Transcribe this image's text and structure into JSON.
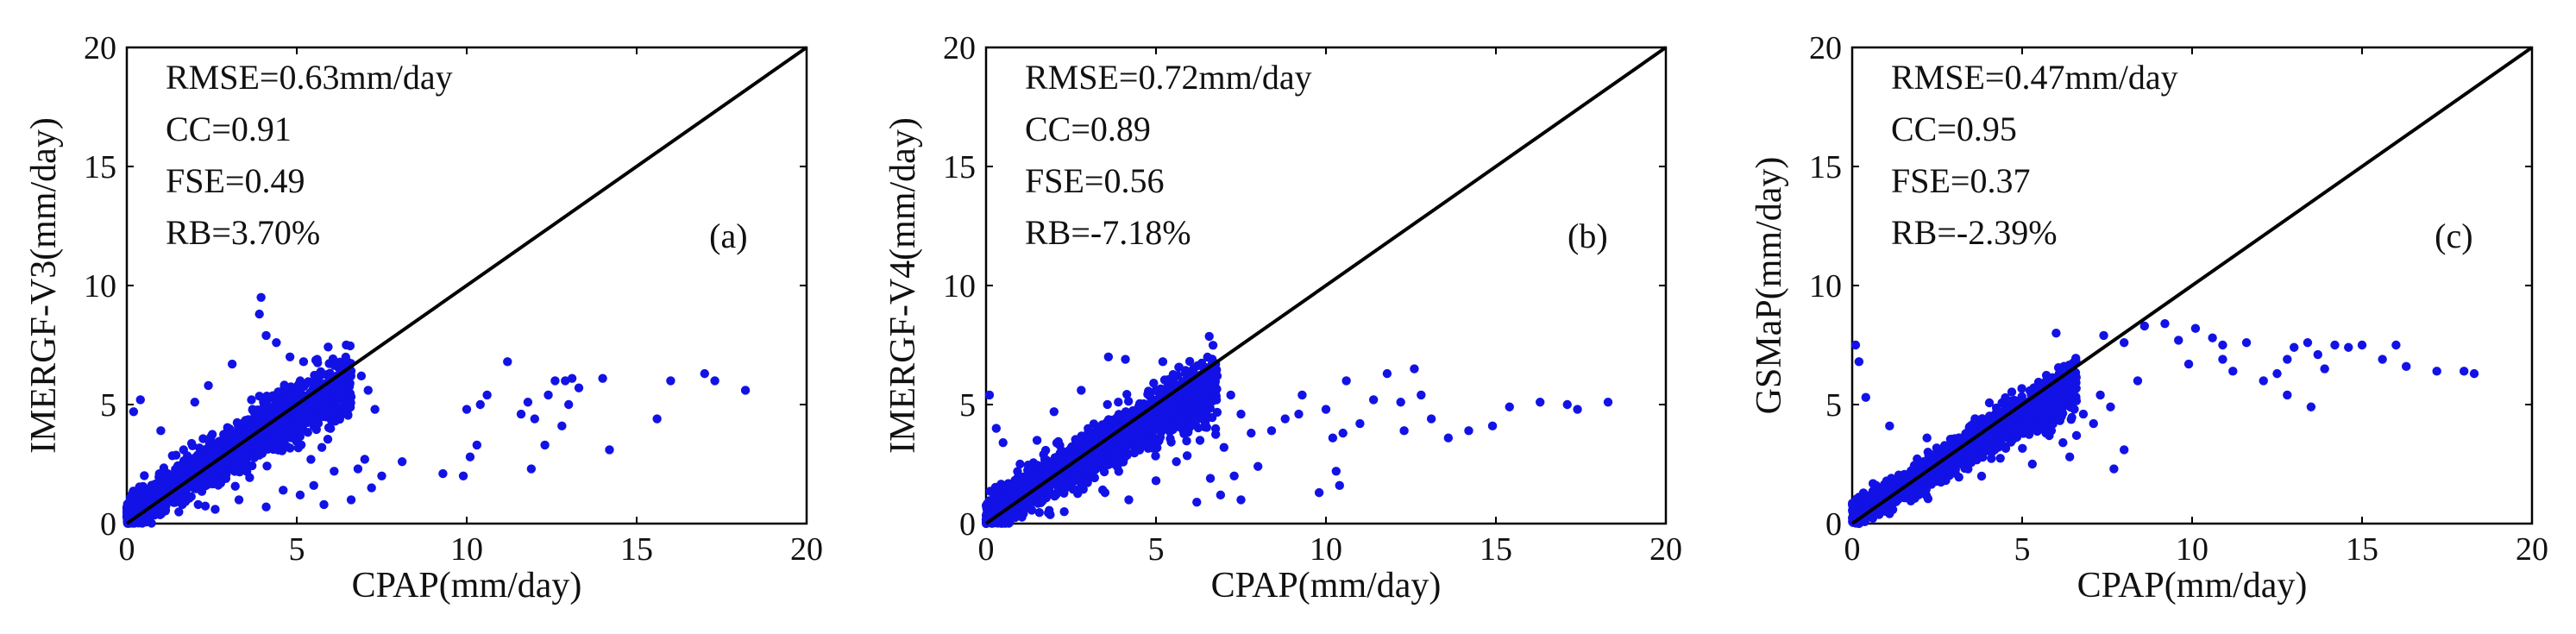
{
  "chart_data": [
    {
      "panel_label": "(a)",
      "type": "scatter",
      "xlabel": "CPAP(mm/day)",
      "ylabel": "IMERGF-V3(mm/day)",
      "xlim": [
        0,
        20
      ],
      "ylim": [
        0,
        20
      ],
      "xticks": [
        "0",
        "5",
        "10",
        "15",
        "20"
      ],
      "yticks": [
        "0",
        "5",
        "10",
        "15",
        "20"
      ],
      "stats": [
        "RMSE=0.63mm/day",
        "CC=0.91",
        "FSE=0.49",
        "RB=3.70%"
      ],
      "reference_line": {
        "name": "1:1 line",
        "from": [
          0,
          0
        ],
        "to": [
          20,
          20
        ]
      },
      "dense_cluster": {
        "x_range": [
          0,
          6.6
        ],
        "slope": 0.87,
        "spread": 0.75
      },
      "points": [
        [
          3.95,
          9.5
        ],
        [
          3.9,
          8.8
        ],
        [
          4.4,
          7.6
        ],
        [
          4.1,
          7.9
        ],
        [
          5.2,
          6.8
        ],
        [
          6.4,
          6.6
        ],
        [
          6.9,
          6.2
        ],
        [
          7.1,
          5.6
        ],
        [
          7.3,
          4.8
        ],
        [
          6.5,
          4.6
        ],
        [
          7.0,
          2.7
        ],
        [
          6.8,
          2.3
        ],
        [
          7.2,
          1.5
        ],
        [
          6.6,
          1.0
        ],
        [
          5.8,
          0.8
        ],
        [
          6.1,
          2.2
        ],
        [
          5.5,
          1.6
        ],
        [
          7.5,
          2.0
        ],
        [
          8.1,
          2.6
        ],
        [
          9.3,
          2.1
        ],
        [
          9.9,
          2.0
        ],
        [
          10.1,
          2.8
        ],
        [
          10.3,
          3.3
        ],
        [
          10.0,
          4.8
        ],
        [
          10.4,
          5.0
        ],
        [
          10.6,
          5.4
        ],
        [
          11.2,
          6.8
        ],
        [
          11.6,
          4.6
        ],
        [
          11.8,
          5.1
        ],
        [
          12.0,
          4.4
        ],
        [
          12.4,
          5.4
        ],
        [
          12.6,
          6.0
        ],
        [
          12.9,
          6.0
        ],
        [
          13.1,
          6.1
        ],
        [
          13.3,
          5.7
        ],
        [
          13.0,
          5.0
        ],
        [
          12.8,
          4.1
        ],
        [
          12.3,
          3.3
        ],
        [
          11.9,
          2.3
        ],
        [
          14.2,
          3.1
        ],
        [
          14.0,
          6.1
        ],
        [
          15.6,
          4.4
        ],
        [
          16.0,
          6.0
        ],
        [
          17.0,
          6.3
        ],
        [
          17.3,
          6.0
        ],
        [
          18.2,
          5.6
        ],
        [
          2.1,
          0.8
        ],
        [
          2.6,
          0.6
        ],
        [
          3.3,
          1.0
        ],
        [
          4.6,
          1.4
        ],
        [
          5.1,
          1.2
        ],
        [
          4.1,
          0.7
        ],
        [
          0.2,
          4.7
        ],
        [
          0.4,
          5.2
        ],
        [
          1.0,
          3.9
        ],
        [
          2.4,
          5.8
        ],
        [
          3.1,
          6.7
        ],
        [
          2.0,
          5.1
        ],
        [
          4.8,
          7.0
        ],
        [
          5.6,
          6.9
        ]
      ]
    },
    {
      "panel_label": "(b)",
      "type": "scatter",
      "xlabel": "CPAP(mm/day)",
      "ylabel": "IMERGF-V4(mm/day)",
      "xlim": [
        0,
        20
      ],
      "ylim": [
        0,
        20
      ],
      "xticks": [
        "0",
        "5",
        "10",
        "15",
        "20"
      ],
      "yticks": [
        "0",
        "5",
        "10",
        "15",
        "20"
      ],
      "stats": [
        "RMSE=0.72mm/day",
        "CC=0.89",
        "FSE=0.56",
        "RB=-7.18%"
      ],
      "reference_line": {
        "name": "1:1 line",
        "from": [
          0,
          0
        ],
        "to": [
          20,
          20
        ]
      },
      "dense_cluster": {
        "x_range": [
          0,
          6.8
        ],
        "slope": 0.82,
        "spread": 0.8
      },
      "points": [
        [
          3.6,
          7.0
        ],
        [
          4.1,
          6.9
        ],
        [
          5.2,
          6.8
        ],
        [
          6.1,
          6.5
        ],
        [
          6.8,
          6.2
        ],
        [
          7.2,
          5.4
        ],
        [
          7.5,
          4.6
        ],
        [
          7.8,
          3.8
        ],
        [
          7.0,
          3.2
        ],
        [
          7.3,
          2.0
        ],
        [
          6.6,
          1.9
        ],
        [
          6.9,
          1.2
        ],
        [
          6.2,
          0.9
        ],
        [
          7.5,
          1.0
        ],
        [
          8.0,
          2.4
        ],
        [
          8.4,
          3.9
        ],
        [
          8.8,
          4.4
        ],
        [
          9.3,
          5.4
        ],
        [
          9.2,
          4.6
        ],
        [
          10.0,
          4.8
        ],
        [
          10.2,
          3.6
        ],
        [
          10.5,
          3.8
        ],
        [
          10.3,
          2.2
        ],
        [
          10.4,
          1.6
        ],
        [
          10.6,
          6.0
        ],
        [
          11.0,
          4.2
        ],
        [
          11.4,
          5.2
        ],
        [
          11.8,
          6.3
        ],
        [
          12.2,
          5.1
        ],
        [
          12.3,
          3.9
        ],
        [
          12.6,
          6.5
        ],
        [
          12.8,
          5.4
        ],
        [
          13.1,
          4.4
        ],
        [
          13.6,
          3.6
        ],
        [
          14.2,
          3.9
        ],
        [
          14.9,
          4.1
        ],
        [
          15.4,
          4.9
        ],
        [
          16.3,
          5.1
        ],
        [
          17.1,
          5.0
        ],
        [
          17.4,
          4.8
        ],
        [
          18.3,
          5.1
        ],
        [
          0.1,
          5.4
        ],
        [
          0.3,
          4.0
        ],
        [
          0.5,
          3.4
        ],
        [
          1.0,
          2.5
        ],
        [
          1.5,
          3.5
        ],
        [
          2.0,
          4.7
        ],
        [
          2.8,
          5.6
        ],
        [
          2.3,
          0.5
        ],
        [
          3.5,
          1.3
        ],
        [
          4.2,
          1.0
        ],
        [
          5.0,
          1.8
        ],
        [
          5.6,
          2.6
        ],
        [
          9.8,
          1.3
        ]
      ]
    },
    {
      "panel_label": "(c)",
      "type": "scatter",
      "xlabel": "CPAP(mm/day)",
      "ylabel": "GSMaP(mm/day)",
      "xlim": [
        0,
        20
      ],
      "ylim": [
        0,
        20
      ],
      "xticks": [
        "0",
        "5",
        "10",
        "15",
        "20"
      ],
      "yticks": [
        "0",
        "5",
        "10",
        "15",
        "20"
      ],
      "stats": [
        "RMSE=0.47mm/day",
        "CC=0.95",
        "FSE=0.37",
        "RB=-2.39%"
      ],
      "reference_line": {
        "name": "1:1 line",
        "from": [
          0,
          0
        ],
        "to": [
          20,
          20
        ]
      },
      "dense_cluster": {
        "x_range": [
          0,
          6.6
        ],
        "slope": 0.83,
        "spread": 0.55
      },
      "points": [
        [
          0.1,
          7.5
        ],
        [
          0.2,
          6.8
        ],
        [
          0.4,
          5.3
        ],
        [
          1.1,
          4.1
        ],
        [
          2.2,
          3.6
        ],
        [
          6.0,
          8.0
        ],
        [
          7.4,
          7.9
        ],
        [
          8.0,
          7.6
        ],
        [
          8.6,
          8.3
        ],
        [
          9.2,
          8.4
        ],
        [
          9.6,
          7.7
        ],
        [
          10.1,
          8.2
        ],
        [
          10.6,
          7.8
        ],
        [
          10.9,
          7.5
        ],
        [
          11.2,
          6.4
        ],
        [
          11.6,
          7.6
        ],
        [
          12.1,
          6.0
        ],
        [
          12.5,
          6.3
        ],
        [
          12.8,
          6.9
        ],
        [
          13.0,
          7.4
        ],
        [
          13.4,
          7.6
        ],
        [
          13.7,
          7.1
        ],
        [
          13.9,
          6.5
        ],
        [
          14.2,
          7.5
        ],
        [
          14.6,
          7.4
        ],
        [
          15.0,
          7.5
        ],
        [
          15.6,
          6.9
        ],
        [
          16.0,
          7.5
        ],
        [
          16.3,
          6.6
        ],
        [
          17.2,
          6.4
        ],
        [
          18.0,
          6.4
        ],
        [
          18.3,
          6.3
        ],
        [
          13.5,
          4.9
        ],
        [
          12.8,
          5.4
        ],
        [
          10.9,
          6.9
        ],
        [
          9.9,
          6.7
        ],
        [
          8.4,
          6.0
        ],
        [
          7.6,
          4.9
        ],
        [
          7.1,
          4.2
        ],
        [
          6.8,
          4.6
        ],
        [
          6.6,
          3.7
        ],
        [
          7.3,
          5.4
        ],
        [
          8.0,
          3.1
        ],
        [
          6.2,
          3.4
        ],
        [
          5.7,
          3.8
        ],
        [
          5.3,
          2.5
        ],
        [
          6.4,
          2.8
        ],
        [
          7.7,
          2.3
        ]
      ]
    }
  ]
}
